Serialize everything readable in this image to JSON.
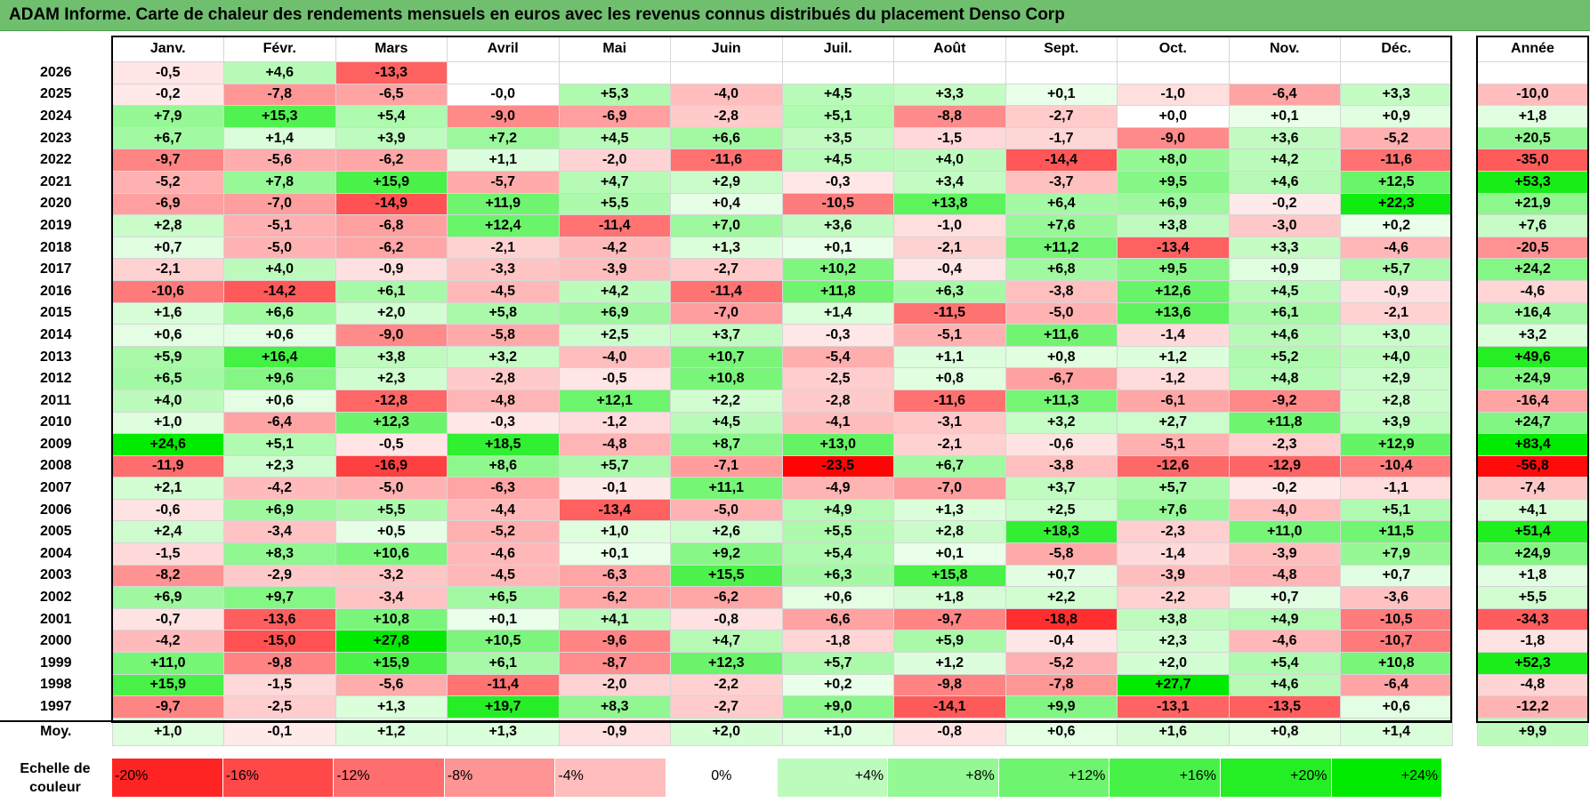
{
  "title": "ADAM Informe. Carte de chaleur des rendements mensuels en euros avec les revenus connus distribués du placement Denso Corp",
  "chart_data": {
    "type": "heatmap",
    "title": "ADAM Informe. Carte de chaleur des rendements mensuels en euros avec les revenus connus distribués du placement Denso Corp",
    "months": [
      "Janv.",
      "Févr.",
      "Mars",
      "Avril",
      "Mai",
      "Juin",
      "Juil.",
      "Août",
      "Sept.",
      "Oct.",
      "Nov.",
      "Déc."
    ],
    "year_header": "Année",
    "avg_label": "Moy.",
    "rows": [
      {
        "year": "2026",
        "values": [
          "-0,5",
          "+4,6",
          "-13,3",
          "",
          "",
          "",
          "",
          "",
          "",
          "",
          "",
          ""
        ],
        "annual": ""
      },
      {
        "year": "2025",
        "values": [
          "-0,2",
          "-7,8",
          "-6,5",
          "-0,0",
          "+5,3",
          "-4,0",
          "+4,5",
          "+3,3",
          "+0,1",
          "-1,0",
          "-6,4",
          "+3,3"
        ],
        "annual": "-10,0"
      },
      {
        "year": "2024",
        "values": [
          "+7,9",
          "+15,3",
          "+5,4",
          "-9,0",
          "-6,9",
          "-2,8",
          "+5,1",
          "-8,8",
          "-2,7",
          "+0,0",
          "+0,1",
          "+0,9"
        ],
        "annual": "+1,8"
      },
      {
        "year": "2023",
        "values": [
          "+6,7",
          "+1,4",
          "+3,9",
          "+7,2",
          "+4,5",
          "+6,6",
          "+3,5",
          "-1,5",
          "-1,7",
          "-9,0",
          "+3,6",
          "-5,2"
        ],
        "annual": "+20,5"
      },
      {
        "year": "2022",
        "values": [
          "-9,7",
          "-5,6",
          "-6,2",
          "+1,1",
          "-2,0",
          "-11,6",
          "+4,5",
          "+4,0",
          "-14,4",
          "+8,0",
          "+4,2",
          "-11,6"
        ],
        "annual": "-35,0"
      },
      {
        "year": "2021",
        "values": [
          "-5,2",
          "+7,8",
          "+15,9",
          "-5,7",
          "+4,7",
          "+2,9",
          "-0,3",
          "+3,4",
          "-3,7",
          "+9,5",
          "+4,6",
          "+12,5"
        ],
        "annual": "+53,3"
      },
      {
        "year": "2020",
        "values": [
          "-6,9",
          "-7,0",
          "-14,9",
          "+11,9",
          "+5,5",
          "+0,4",
          "-10,5",
          "+13,8",
          "+6,4",
          "+6,9",
          "-0,2",
          "+22,3"
        ],
        "annual": "+21,9"
      },
      {
        "year": "2019",
        "values": [
          "+2,8",
          "-5,1",
          "-6,8",
          "+12,4",
          "-11,4",
          "+7,0",
          "+3,6",
          "-1,0",
          "+7,6",
          "+3,8",
          "-3,0",
          "+0,2"
        ],
        "annual": "+7,6"
      },
      {
        "year": "2018",
        "values": [
          "+0,7",
          "-5,0",
          "-6,2",
          "-2,1",
          "-4,2",
          "+1,3",
          "+0,1",
          "-2,1",
          "+11,2",
          "-13,4",
          "+3,3",
          "-4,6"
        ],
        "annual": "-20,5"
      },
      {
        "year": "2017",
        "values": [
          "-2,1",
          "+4,0",
          "-0,9",
          "-3,3",
          "-3,9",
          "-2,7",
          "+10,2",
          "-0,4",
          "+6,8",
          "+9,5",
          "+0,9",
          "+5,7"
        ],
        "annual": "+24,2"
      },
      {
        "year": "2016",
        "values": [
          "-10,6",
          "-14,2",
          "+6,1",
          "-4,5",
          "+4,2",
          "-11,4",
          "+11,8",
          "+6,3",
          "-3,8",
          "+12,6",
          "+4,5",
          "-0,9"
        ],
        "annual": "-4,6"
      },
      {
        "year": "2015",
        "values": [
          "+1,6",
          "+6,6",
          "+2,0",
          "+5,8",
          "+6,9",
          "-7,0",
          "+1,4",
          "-11,5",
          "-5,0",
          "+13,6",
          "+6,1",
          "-2,1"
        ],
        "annual": "+16,4"
      },
      {
        "year": "2014",
        "values": [
          "+0,6",
          "+0,6",
          "-9,0",
          "-5,8",
          "+2,5",
          "+3,7",
          "-0,3",
          "-5,1",
          "+11,6",
          "-1,4",
          "+4,6",
          "+3,0"
        ],
        "annual": "+3,2"
      },
      {
        "year": "2013",
        "values": [
          "+5,9",
          "+16,4",
          "+3,8",
          "+3,2",
          "-4,0",
          "+10,7",
          "-5,4",
          "+1,1",
          "+0,8",
          "+1,2",
          "+5,2",
          "+4,0"
        ],
        "annual": "+49,6"
      },
      {
        "year": "2012",
        "values": [
          "+6,5",
          "+9,6",
          "+2,3",
          "-2,8",
          "-0,5",
          "+10,8",
          "-2,5",
          "+0,8",
          "-6,7",
          "-1,2",
          "+4,8",
          "+2,9"
        ],
        "annual": "+24,9"
      },
      {
        "year": "2011",
        "values": [
          "+4,0",
          "+0,6",
          "-12,8",
          "-4,8",
          "+12,1",
          "+2,2",
          "-2,8",
          "-11,6",
          "+11,3",
          "-6,1",
          "-9,2",
          "+2,8"
        ],
        "annual": "-16,4"
      },
      {
        "year": "2010",
        "values": [
          "+1,0",
          "-6,4",
          "+12,3",
          "-0,3",
          "-1,2",
          "+4,5",
          "-4,1",
          "-3,1",
          "+3,2",
          "+2,7",
          "+11,8",
          "+3,9"
        ],
        "annual": "+24,7"
      },
      {
        "year": "2009",
        "values": [
          "+24,6",
          "+5,1",
          "-0,5",
          "+18,5",
          "-4,8",
          "+8,7",
          "+13,0",
          "-2,1",
          "-0,6",
          "-5,1",
          "-2,3",
          "+12,9"
        ],
        "annual": "+83,4"
      },
      {
        "year": "2008",
        "values": [
          "-11,9",
          "+2,3",
          "-16,9",
          "+8,6",
          "+5,7",
          "-7,1",
          "-23,5",
          "+6,7",
          "-3,8",
          "-12,6",
          "-12,9",
          "-10,4"
        ],
        "annual": "-56,8"
      },
      {
        "year": "2007",
        "values": [
          "+2,1",
          "-4,2",
          "-5,0",
          "-6,3",
          "-0,1",
          "+11,1",
          "-4,9",
          "-7,0",
          "+3,7",
          "+5,7",
          "-0,2",
          "-1,1"
        ],
        "annual": "-7,4"
      },
      {
        "year": "2006",
        "values": [
          "-0,6",
          "+6,9",
          "+5,5",
          "-4,4",
          "-13,4",
          "-5,0",
          "+4,9",
          "+1,3",
          "+2,5",
          "+7,6",
          "-4,0",
          "+5,1"
        ],
        "annual": "+4,1"
      },
      {
        "year": "2005",
        "values": [
          "+2,4",
          "-3,4",
          "+0,5",
          "-5,2",
          "+1,0",
          "+2,6",
          "+5,5",
          "+2,8",
          "+18,3",
          "-2,3",
          "+11,0",
          "+11,5"
        ],
        "annual": "+51,4"
      },
      {
        "year": "2004",
        "values": [
          "-1,5",
          "+8,3",
          "+10,6",
          "-4,6",
          "+0,1",
          "+9,2",
          "+5,4",
          "+0,1",
          "-5,8",
          "-1,4",
          "-3,9",
          "+7,9"
        ],
        "annual": "+24,9"
      },
      {
        "year": "2003",
        "values": [
          "-8,2",
          "-2,9",
          "-3,2",
          "-4,5",
          "-6,3",
          "+15,5",
          "+6,3",
          "+15,8",
          "+0,7",
          "-3,9",
          "-4,8",
          "+0,7"
        ],
        "annual": "+1,8"
      },
      {
        "year": "2002",
        "values": [
          "+6,9",
          "+9,7",
          "-3,4",
          "+6,5",
          "-6,2",
          "-6,2",
          "+0,6",
          "+1,8",
          "+2,2",
          "-2,2",
          "+0,7",
          "-3,6"
        ],
        "annual": "+5,5"
      },
      {
        "year": "2001",
        "values": [
          "-0,7",
          "-13,6",
          "+10,8",
          "+0,1",
          "+4,1",
          "-0,8",
          "-6,6",
          "-9,7",
          "-18,8",
          "+3,8",
          "+4,9",
          "-10,5"
        ],
        "annual": "-34,3"
      },
      {
        "year": "2000",
        "values": [
          "-4,2",
          "-15,0",
          "+27,8",
          "+10,5",
          "-9,6",
          "+4,7",
          "-1,8",
          "+5,9",
          "-0,4",
          "+2,3",
          "-4,6",
          "-10,7"
        ],
        "annual": "-1,8"
      },
      {
        "year": "1999",
        "values": [
          "+11,0",
          "-9,8",
          "+15,9",
          "+6,1",
          "-8,7",
          "+12,3",
          "+5,7",
          "+1,2",
          "-5,2",
          "+2,0",
          "+5,4",
          "+10,8"
        ],
        "annual": "+52,3"
      },
      {
        "year": "1998",
        "values": [
          "+15,9",
          "-1,5",
          "-5,6",
          "-11,4",
          "-2,0",
          "-2,2",
          "+0,2",
          "-9,8",
          "-7,8",
          "+27,7",
          "+4,6",
          "-6,4"
        ],
        "annual": "-4,8"
      },
      {
        "year": "1997",
        "values": [
          "-9,7",
          "-2,5",
          "+1,3",
          "+19,7",
          "+8,3",
          "-2,7",
          "+9,0",
          "-14,1",
          "+9,9",
          "-13,1",
          "-13,5",
          "+0,6"
        ],
        "annual": "-12,2"
      }
    ],
    "averages": [
      "+1,0",
      "-0,1",
      "+1,2",
      "+1,3",
      "-0,9",
      "+2,0",
      "+1,0",
      "-0,8",
      "+0,6",
      "+1,6",
      "+0,8",
      "+1,4"
    ],
    "avg_annual": "+9,9",
    "scale": {
      "label_line1": "Echelle de",
      "label_line2": "couleur",
      "stops": [
        "-20%",
        "-16%",
        "-12%",
        "-8%",
        "-4%",
        "0%",
        "+4%",
        "+8%",
        "+12%",
        "+16%",
        "+20%",
        "+24%"
      ]
    }
  }
}
